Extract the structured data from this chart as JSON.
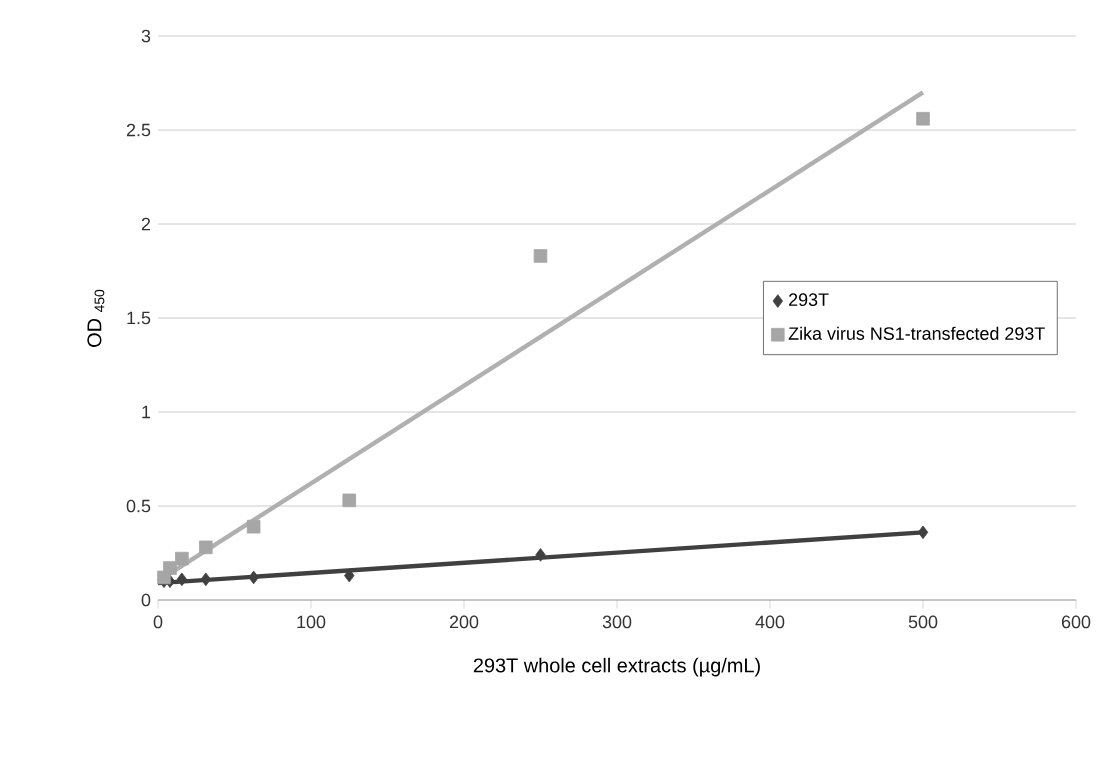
{
  "chart_data": {
    "type": "scatter",
    "xlabel": "293T whole cell extracts (µg/mL)",
    "ylabel": "OD $_{450}$",
    "series": [
      {
        "name": "293T",
        "marker": "diamond",
        "color": "#404040",
        "x": [
          3.9,
          7.8,
          15.6,
          31.25,
          62.5,
          125,
          250,
          500
        ],
        "values": [
          0.1,
          0.1,
          0.11,
          0.11,
          0.12,
          0.13,
          0.24,
          0.36
        ]
      },
      {
        "name": "Zika virus NS1-transfected 293T",
        "marker": "square",
        "color": "#a6a6a6",
        "x": [
          3.9,
          7.8,
          15.6,
          31.25,
          62.5,
          125,
          250,
          500
        ],
        "values": [
          0.12,
          0.17,
          0.22,
          0.28,
          0.39,
          0.53,
          1.83,
          2.56
        ]
      },
      {
        "type": "line",
        "marker": "none",
        "color": "#404040",
        "x": [
          0,
          500
        ],
        "values": [
          0.09,
          0.36
        ]
      },
      {
        "type": "line",
        "marker": "none",
        "color": "#b0b0b0",
        "x": [
          0,
          500
        ],
        "values": [
          0.1,
          2.7
        ]
      }
    ],
    "xlim": [
      0,
      600
    ],
    "ylim": [
      0,
      3
    ],
    "xticks": [
      0,
      100,
      200,
      300,
      400,
      500,
      600
    ],
    "yticks": [
      0,
      0.5,
      1,
      1.5,
      2,
      2.5,
      3
    ],
    "grid": "y",
    "legend": "right"
  }
}
